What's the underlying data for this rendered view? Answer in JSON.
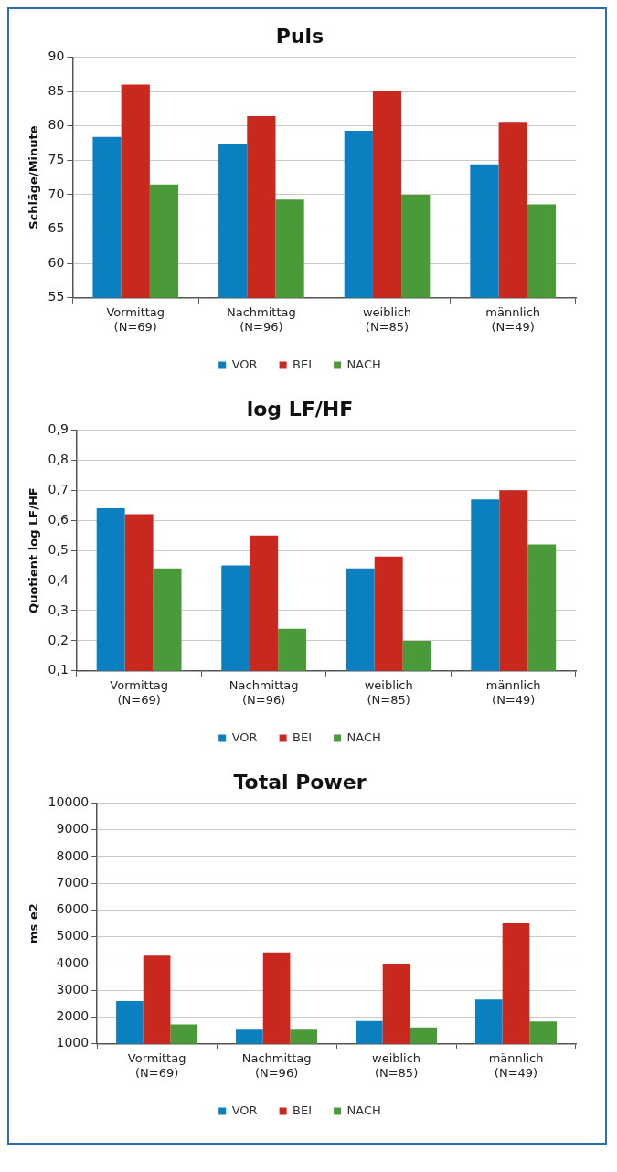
{
  "chart_data": [
    {
      "type": "bar",
      "title": "Puls",
      "ylabel": "Schläge/Minute",
      "categories": [
        "Vormittag\n(N=69)",
        "Nachmittag\n(N=96)",
        "weiblich\n(N=85)",
        "männlich\n(N=49)"
      ],
      "series": [
        {
          "name": "VOR",
          "color": "#0a80c0",
          "values": [
            78.4,
            77.4,
            79.3,
            74.4
          ]
        },
        {
          "name": "BEI",
          "color": "#c8281e",
          "values": [
            86.0,
            81.4,
            85.0,
            80.6
          ]
        },
        {
          "name": "NACH",
          "color": "#4a9a3a",
          "values": [
            71.5,
            69.3,
            70.0,
            68.6
          ]
        }
      ],
      "ylim": [
        55,
        90
      ],
      "yticks": [
        55,
        60,
        65,
        70,
        75,
        80,
        85,
        90
      ],
      "grid": "y",
      "legend": "bottom"
    },
    {
      "type": "bar",
      "title": "log LF/HF",
      "ylabel": "Quotient log LF/HF",
      "categories": [
        "Vormittag\n(N=69)",
        "Nachmittag\n(N=96)",
        "weiblich\n(N=85)",
        "männlich\n(N=49)"
      ],
      "series": [
        {
          "name": "VOR",
          "color": "#0a80c0",
          "values": [
            0.64,
            0.45,
            0.44,
            0.67
          ]
        },
        {
          "name": "BEI",
          "color": "#c8281e",
          "values": [
            0.62,
            0.55,
            0.48,
            0.7
          ]
        },
        {
          "name": "NACH",
          "color": "#4a9a3a",
          "values": [
            0.44,
            0.24,
            0.2,
            0.52
          ]
        }
      ],
      "ylim": [
        0.1,
        0.9
      ],
      "yticks": [
        {
          "value": 0.1,
          "label": "0,1"
        },
        {
          "value": 0.2,
          "label": "0,2"
        },
        {
          "value": 0.3,
          "label": "0,3"
        },
        {
          "value": 0.4,
          "label": "0,4"
        },
        {
          "value": 0.5,
          "label": "0,5"
        },
        {
          "value": 0.6,
          "label": "0,6"
        },
        {
          "value": 0.7,
          "label": "0,7"
        },
        {
          "value": 0.8,
          "label": "0,8"
        },
        {
          "value": 0.9,
          "label": "0,9"
        }
      ],
      "grid": "y",
      "legend": "bottom"
    },
    {
      "type": "bar",
      "title": "Total Power",
      "ylabel": "ms e2",
      "categories": [
        "Vormittag\n(N=69)",
        "Nachmittag\n(N=96)",
        "weiblich\n(N=85)",
        "männlich\n(N=49)"
      ],
      "series": [
        {
          "name": "VOR",
          "color": "#0a80c0",
          "values": [
            2600,
            1530,
            1860,
            2660
          ]
        },
        {
          "name": "BEI",
          "color": "#c8281e",
          "values": [
            4300,
            4420,
            3980,
            5500
          ]
        },
        {
          "name": "NACH",
          "color": "#4a9a3a",
          "values": [
            1730,
            1530,
            1620,
            1840
          ]
        }
      ],
      "ylim": [
        1000,
        10000
      ],
      "yticks": [
        1000,
        2000,
        3000,
        4000,
        5000,
        6000,
        7000,
        8000,
        9000,
        10000
      ],
      "grid": "y",
      "legend": "bottom"
    }
  ]
}
